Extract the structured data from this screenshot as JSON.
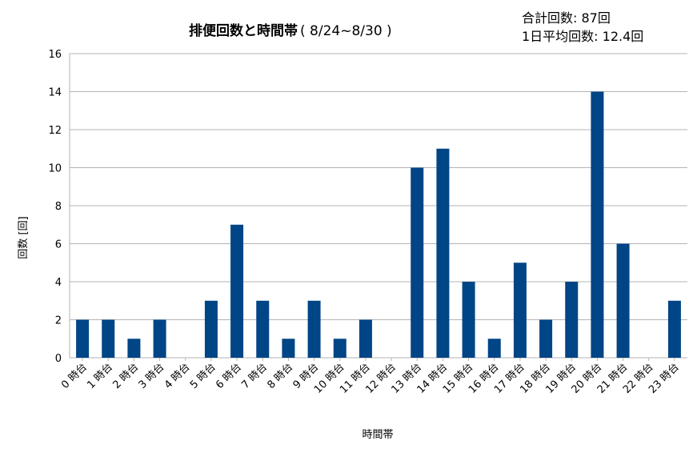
{
  "chart_data": {
    "type": "bar",
    "title": "排便回数と時間帯",
    "subtitle": "( 8/24~8/30 )",
    "xlabel": "時間帯",
    "ylabel": "回数 [回]",
    "ylim": [
      0,
      16
    ],
    "y_ticks": [
      0,
      2,
      4,
      6,
      8,
      10,
      12,
      14,
      16
    ],
    "grid": true,
    "legend": "none",
    "bar_color": "#004586",
    "categories": [
      "0 時台",
      "1 時台",
      "2 時台",
      "3 時台",
      "4 時台",
      "5 時台",
      "6 時台",
      "7 時台",
      "8 時台",
      "9 時台",
      "10 時台",
      "11 時台",
      "12 時台",
      "13 時台",
      "14 時台",
      "15 時台",
      "16 時台",
      "17 時台",
      "18 時台",
      "19 時台",
      "20 時台",
      "21 時台",
      "22 時台",
      "23 時台"
    ],
    "values": [
      2,
      2,
      1,
      2,
      0,
      3,
      7,
      3,
      1,
      3,
      1,
      2,
      0,
      10,
      11,
      4,
      1,
      5,
      2,
      4,
      14,
      6,
      0,
      3
    ],
    "annotations": [
      "合計回数: 87回",
      "1日平均回数: 12.4回"
    ]
  }
}
